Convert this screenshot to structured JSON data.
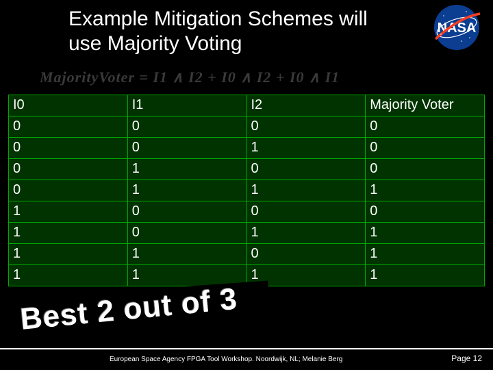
{
  "slide": {
    "title": "Example Mitigation Schemes will use Majority Voting",
    "equation": "MajorityVoter = I1 ∧ I2 + I0 ∧ I2 + I0 ∧ I1",
    "callout": "Best 2 out of 3",
    "footer": "European Space Agency FPGA Tool Workshop. Noordwijk, NL; Melanie Berg",
    "page": "Page 12"
  },
  "table": {
    "type": "table",
    "background_color": "#003300",
    "border_color": "#00aa00",
    "text_color": "#ffffff",
    "fontsize": 20,
    "columns": [
      "I0",
      "I1",
      "I2",
      "Majority Voter"
    ],
    "rows": [
      [
        "0",
        "0",
        "0",
        "0"
      ],
      [
        "0",
        "0",
        "1",
        "0"
      ],
      [
        "0",
        "1",
        "0",
        "0"
      ],
      [
        "0",
        "1",
        "1",
        "1"
      ],
      [
        "1",
        "0",
        "0",
        "0"
      ],
      [
        "1",
        "0",
        "1",
        "1"
      ],
      [
        "1",
        "1",
        "0",
        "1"
      ],
      [
        "1",
        "1",
        "1",
        "1"
      ]
    ]
  },
  "logo": {
    "name": "NASA",
    "bg_color": "#0b3d91",
    "text_color": "#ffffff",
    "swoosh_color": "#fc3d21"
  }
}
